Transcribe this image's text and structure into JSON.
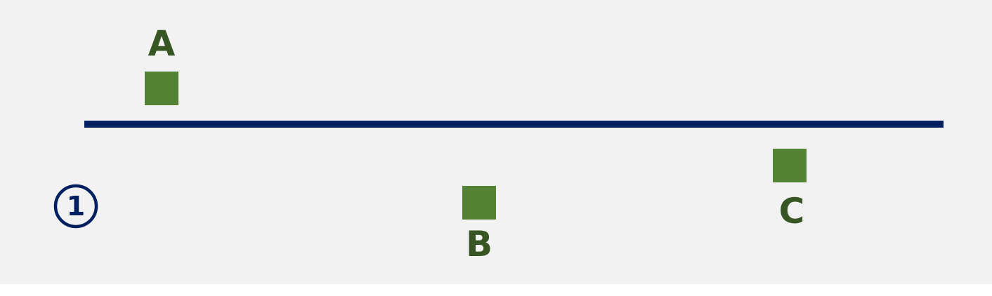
{
  "diagram": {
    "step_number": "1",
    "colors": {
      "background": "#f2f2f2",
      "line": "#002060",
      "marker": "#548235",
      "label": "#375623"
    },
    "points": [
      {
        "label": "A",
        "side": "above"
      },
      {
        "label": "B",
        "side": "below"
      },
      {
        "label": "C",
        "side": "below"
      }
    ]
  }
}
